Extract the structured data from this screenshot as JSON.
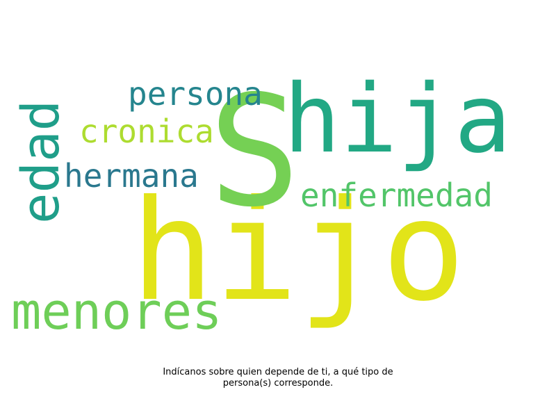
{
  "word_cloud": {
    "words": [
      {
        "text": "hijo",
        "color": "#e2e419"
      },
      {
        "text": "S",
        "color": "#75d054"
      },
      {
        "text": "hija",
        "color": "#22a884"
      },
      {
        "text": "menores",
        "color": "#6ece58"
      },
      {
        "text": "persona",
        "color": "#25858e"
      },
      {
        "text": "cronica",
        "color": "#addc30"
      },
      {
        "text": "hermana",
        "color": "#2a788e"
      },
      {
        "text": "enfermedad",
        "color": "#52c569"
      },
      {
        "text": "edad",
        "color": "#1f9e89"
      }
    ]
  },
  "caption": {
    "line1": "Indícanos sobre quien depende de ti, a qué tipo de",
    "line2": "persona(s) corresponde."
  }
}
